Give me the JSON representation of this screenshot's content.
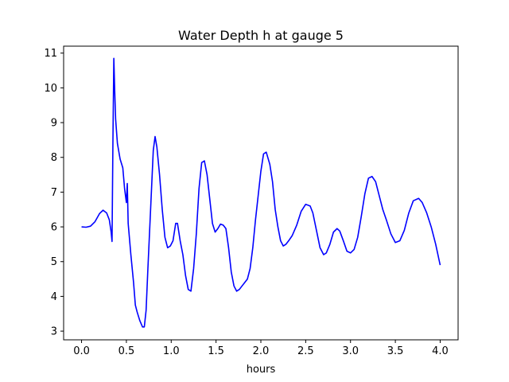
{
  "chart_data": {
    "type": "line",
    "title": "Water Depth h at gauge 5",
    "xlabel": "hours",
    "ylabel": "",
    "xlim": [
      -0.2,
      4.2
    ],
    "ylim": [
      2.75,
      11.2
    ],
    "xticks": [
      0.0,
      0.5,
      1.0,
      1.5,
      2.0,
      2.5,
      3.0,
      3.5,
      4.0
    ],
    "xtick_labels": [
      "0.0",
      "0.5",
      "1.0",
      "1.5",
      "2.0",
      "2.5",
      "3.0",
      "3.5",
      "4.0"
    ],
    "yticks": [
      3,
      4,
      5,
      6,
      7,
      8,
      9,
      10,
      11
    ],
    "ytick_labels": [
      "3",
      "4",
      "5",
      "6",
      "7",
      "8",
      "9",
      "10",
      "11"
    ],
    "grid": false,
    "legend": "none",
    "series": [
      {
        "color": "#0000ff",
        "x": [
          0.0,
          0.05,
          0.1,
          0.15,
          0.2,
          0.24,
          0.28,
          0.31,
          0.33,
          0.34,
          0.35,
          0.36,
          0.37,
          0.38,
          0.4,
          0.43,
          0.46,
          0.48,
          0.5,
          0.51,
          0.52,
          0.55,
          0.58,
          0.6,
          0.62,
          0.65,
          0.68,
          0.7,
          0.72,
          0.74,
          0.77,
          0.8,
          0.82,
          0.84,
          0.87,
          0.9,
          0.93,
          0.96,
          0.99,
          1.02,
          1.05,
          1.07,
          1.1,
          1.13,
          1.16,
          1.19,
          1.22,
          1.25,
          1.28,
          1.31,
          1.34,
          1.37,
          1.4,
          1.43,
          1.46,
          1.49,
          1.52,
          1.55,
          1.58,
          1.61,
          1.64,
          1.67,
          1.7,
          1.73,
          1.76,
          1.79,
          1.82,
          1.85,
          1.88,
          1.91,
          1.94,
          1.97,
          2.0,
          2.03,
          2.06,
          2.1,
          2.13,
          2.16,
          2.19,
          2.22,
          2.25,
          2.28,
          2.31,
          2.35,
          2.4,
          2.45,
          2.5,
          2.55,
          2.58,
          2.62,
          2.66,
          2.7,
          2.73,
          2.77,
          2.81,
          2.85,
          2.88,
          2.92,
          2.96,
          3.0,
          3.04,
          3.08,
          3.12,
          3.16,
          3.2,
          3.24,
          3.28,
          3.32,
          3.36,
          3.4,
          3.45,
          3.5,
          3.55,
          3.6,
          3.65,
          3.7,
          3.76,
          3.8,
          3.85,
          3.9,
          3.95,
          4.0
        ],
        "y": [
          6.0,
          5.99,
          6.02,
          6.15,
          6.38,
          6.48,
          6.4,
          6.2,
          5.85,
          5.58,
          8.5,
          10.85,
          9.9,
          9.1,
          8.4,
          7.95,
          7.7,
          7.1,
          6.7,
          7.25,
          6.1,
          5.2,
          4.4,
          3.75,
          3.55,
          3.3,
          3.12,
          3.12,
          3.6,
          4.8,
          6.5,
          8.2,
          8.6,
          8.3,
          7.5,
          6.5,
          5.7,
          5.4,
          5.45,
          5.6,
          6.1,
          6.1,
          5.6,
          5.2,
          4.6,
          4.2,
          4.15,
          4.8,
          5.8,
          7.1,
          7.85,
          7.9,
          7.5,
          6.8,
          6.1,
          5.85,
          5.95,
          6.08,
          6.05,
          5.95,
          5.4,
          4.7,
          4.3,
          4.15,
          4.2,
          4.3,
          4.4,
          4.5,
          4.8,
          5.4,
          6.2,
          6.9,
          7.6,
          8.1,
          8.15,
          7.8,
          7.3,
          6.5,
          6.0,
          5.6,
          5.45,
          5.5,
          5.6,
          5.75,
          6.05,
          6.45,
          6.65,
          6.6,
          6.4,
          5.9,
          5.4,
          5.2,
          5.25,
          5.5,
          5.85,
          5.95,
          5.88,
          5.6,
          5.3,
          5.25,
          5.35,
          5.7,
          6.3,
          6.95,
          7.4,
          7.45,
          7.3,
          6.9,
          6.5,
          6.2,
          5.8,
          5.55,
          5.6,
          5.9,
          6.4,
          6.75,
          6.82,
          6.7,
          6.4,
          6.0,
          5.5,
          4.9
        ]
      }
    ]
  }
}
